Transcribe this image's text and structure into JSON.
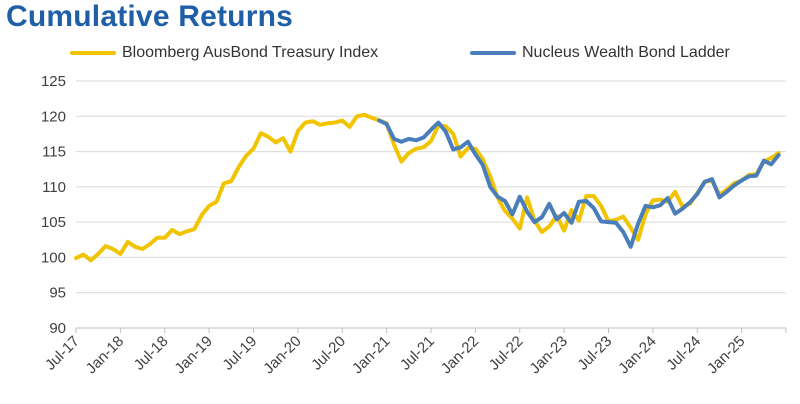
{
  "colors": {
    "title": "#1f5fa8",
    "series_yellow": "#f2c400",
    "series_blue": "#4a7ebb",
    "gridline": "#d9d9d9"
  },
  "chart_data": {
    "type": "line",
    "title": "Cumulative Returns",
    "xlabel": "",
    "ylabel": "",
    "ylim": [
      90,
      125
    ],
    "yticks": [
      90,
      95,
      100,
      105,
      110,
      115,
      120,
      125
    ],
    "xlim": [
      "2017-07",
      "2025-07"
    ],
    "xtick_labels": [
      "Jul-17",
      "Jan-18",
      "Jul-18",
      "Jan-19",
      "Jul-19",
      "Jan-20",
      "Jul-20",
      "Jan-21",
      "Jul-21",
      "Jan-22",
      "Jul-22",
      "Jan-23",
      "Jul-23",
      "Jan-24",
      "Jul-24",
      "Jan-25"
    ],
    "grid": "horizontal",
    "legend_position": "top",
    "series": [
      {
        "name": "Bloomberg AusBond Treasury Index",
        "color": "#f2c400",
        "points": [
          [
            "2017-07",
            99.9
          ],
          [
            "2017-08",
            100.4
          ],
          [
            "2017-09",
            99.6
          ],
          [
            "2017-10",
            100.5
          ],
          [
            "2017-11",
            101.6
          ],
          [
            "2017-12",
            101.2
          ],
          [
            "2018-01",
            100.5
          ],
          [
            "2018-02",
            102.2
          ],
          [
            "2018-03",
            101.5
          ],
          [
            "2018-04",
            101.2
          ],
          [
            "2018-05",
            101.9
          ],
          [
            "2018-06",
            102.8
          ],
          [
            "2018-07",
            102.8
          ],
          [
            "2018-08",
            103.9
          ],
          [
            "2018-09",
            103.3
          ],
          [
            "2018-10",
            103.7
          ],
          [
            "2018-11",
            104.0
          ],
          [
            "2018-12",
            106.0
          ],
          [
            "2019-01",
            107.3
          ],
          [
            "2019-02",
            107.9
          ],
          [
            "2019-03",
            110.5
          ],
          [
            "2019-04",
            110.8
          ],
          [
            "2019-05",
            112.8
          ],
          [
            "2019-06",
            114.4
          ],
          [
            "2019-07",
            115.4
          ],
          [
            "2019-08",
            117.6
          ],
          [
            "2019-09",
            117.1
          ],
          [
            "2019-10",
            116.3
          ],
          [
            "2019-11",
            116.9
          ],
          [
            "2019-12",
            115.0
          ],
          [
            "2020-01",
            117.9
          ],
          [
            "2020-02",
            119.1
          ],
          [
            "2020-03",
            119.3
          ],
          [
            "2020-04",
            118.8
          ],
          [
            "2020-05",
            119.0
          ],
          [
            "2020-06",
            119.1
          ],
          [
            "2020-07",
            119.4
          ],
          [
            "2020-08",
            118.5
          ],
          [
            "2020-09",
            120.0
          ],
          [
            "2020-10",
            120.2
          ],
          [
            "2020-11",
            119.8
          ],
          [
            "2020-12",
            119.4
          ],
          [
            "2021-01",
            119.0
          ],
          [
            "2021-02",
            116.0
          ],
          [
            "2021-03",
            113.6
          ],
          [
            "2021-04",
            114.8
          ],
          [
            "2021-05",
            115.4
          ],
          [
            "2021-06",
            115.6
          ],
          [
            "2021-07",
            116.5
          ],
          [
            "2021-08",
            118.7
          ],
          [
            "2021-09",
            118.6
          ],
          [
            "2021-10",
            117.5
          ],
          [
            "2021-11",
            114.3
          ],
          [
            "2021-12",
            115.5
          ],
          [
            "2022-01",
            115.4
          ],
          [
            "2022-02",
            113.9
          ],
          [
            "2022-03",
            111.5
          ],
          [
            "2022-04",
            108.5
          ],
          [
            "2022-05",
            106.6
          ],
          [
            "2022-06",
            105.5
          ],
          [
            "2022-07",
            104.1
          ],
          [
            "2022-08",
            108.5
          ],
          [
            "2022-09",
            105.2
          ],
          [
            "2022-10",
            103.6
          ],
          [
            "2022-11",
            104.4
          ],
          [
            "2022-12",
            105.9
          ],
          [
            "2023-01",
            103.8
          ],
          [
            "2023-02",
            106.7
          ],
          [
            "2023-03",
            105.2
          ],
          [
            "2023-04",
            108.7
          ],
          [
            "2023-05",
            108.7
          ],
          [
            "2023-06",
            107.3
          ],
          [
            "2023-07",
            105.1
          ],
          [
            "2023-08",
            105.3
          ],
          [
            "2023-09",
            105.8
          ],
          [
            "2023-10",
            104.2
          ],
          [
            "2023-11",
            102.5
          ],
          [
            "2023-12",
            106.1
          ],
          [
            "2024-01",
            108.1
          ],
          [
            "2024-02",
            108.2
          ],
          [
            "2024-03",
            107.9
          ],
          [
            "2024-04",
            109.3
          ],
          [
            "2024-05",
            107.2
          ],
          [
            "2024-06",
            107.6
          ],
          [
            "2024-07",
            109.1
          ],
          [
            "2024-08",
            110.7
          ],
          [
            "2024-09",
            110.9
          ],
          [
            "2024-10",
            108.9
          ],
          [
            "2024-11",
            109.6
          ],
          [
            "2024-12",
            110.5
          ],
          [
            "2025-01",
            110.9
          ],
          [
            "2025-02",
            111.7
          ],
          [
            "2025-03",
            111.8
          ],
          [
            "2025-04",
            113.6
          ],
          [
            "2025-05",
            114.1
          ],
          [
            "2025-06",
            114.8
          ]
        ]
      },
      {
        "name": "Nucleus Wealth Bond Ladder",
        "color": "#4a7ebb",
        "points": [
          [
            "2020-12",
            119.4
          ],
          [
            "2021-01",
            118.9
          ],
          [
            "2021-02",
            116.8
          ],
          [
            "2021-03",
            116.4
          ],
          [
            "2021-04",
            116.8
          ],
          [
            "2021-05",
            116.6
          ],
          [
            "2021-06",
            117.0
          ],
          [
            "2021-07",
            118.1
          ],
          [
            "2021-08",
            119.1
          ],
          [
            "2021-09",
            117.8
          ],
          [
            "2021-10",
            115.3
          ],
          [
            "2021-11",
            115.6
          ],
          [
            "2021-12",
            116.4
          ],
          [
            "2022-01",
            114.6
          ],
          [
            "2022-02",
            113.1
          ],
          [
            "2022-03",
            110.0
          ],
          [
            "2022-04",
            108.6
          ],
          [
            "2022-05",
            108.0
          ],
          [
            "2022-06",
            106.1
          ],
          [
            "2022-07",
            108.6
          ],
          [
            "2022-08",
            106.5
          ],
          [
            "2022-09",
            105.0
          ],
          [
            "2022-10",
            105.7
          ],
          [
            "2022-11",
            107.6
          ],
          [
            "2022-12",
            105.4
          ],
          [
            "2023-01",
            106.3
          ],
          [
            "2023-02",
            104.9
          ],
          [
            "2023-03",
            107.9
          ],
          [
            "2023-04",
            108.0
          ],
          [
            "2023-05",
            107.0
          ],
          [
            "2023-06",
            105.1
          ],
          [
            "2023-07",
            105.0
          ],
          [
            "2023-08",
            104.9
          ],
          [
            "2023-09",
            103.6
          ],
          [
            "2023-10",
            101.5
          ],
          [
            "2023-11",
            104.8
          ],
          [
            "2023-12",
            107.3
          ],
          [
            "2024-01",
            107.1
          ],
          [
            "2024-02",
            107.4
          ],
          [
            "2024-03",
            108.4
          ],
          [
            "2024-04",
            106.2
          ],
          [
            "2024-05",
            106.9
          ],
          [
            "2024-06",
            107.8
          ],
          [
            "2024-07",
            109.0
          ],
          [
            "2024-08",
            110.7
          ],
          [
            "2024-09",
            111.1
          ],
          [
            "2024-10",
            108.5
          ],
          [
            "2024-11",
            109.3
          ],
          [
            "2024-12",
            110.2
          ],
          [
            "2025-01",
            110.9
          ],
          [
            "2025-02",
            111.5
          ],
          [
            "2025-03",
            111.6
          ],
          [
            "2025-04",
            113.7
          ],
          [
            "2025-05",
            113.2
          ],
          [
            "2025-06",
            114.5
          ]
        ]
      }
    ]
  }
}
